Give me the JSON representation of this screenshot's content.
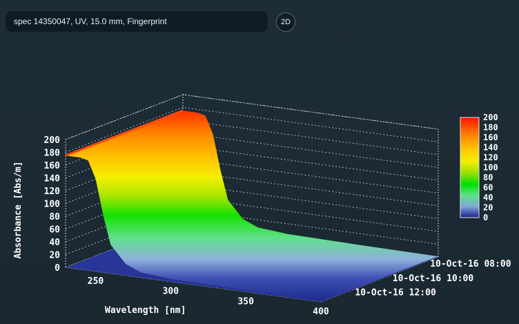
{
  "header": {
    "spectrum_label": "spec 14350047, UV, 15.0 mm, Fingerprint",
    "view_toggle_label": "2D"
  },
  "colors": {
    "background": "#1b2a33",
    "surface_low": "#1c2a8e",
    "surface_high": "#ff3a00"
  },
  "chart_data": {
    "type": "surface3d",
    "title": "",
    "xlabel": "Wavelength [nm]",
    "ylabel": "Absorbance [Abs/m]",
    "zlabel": "",
    "x_ticks": [
      "250",
      "300",
      "350",
      "400"
    ],
    "xlim": [
      230,
      400
    ],
    "y_ticks": [
      "0",
      "20",
      "40",
      "60",
      "80",
      "100",
      "120",
      "140",
      "160",
      "180",
      "200"
    ],
    "ylim": [
      0,
      200
    ],
    "time_ticks": [
      "10-Oct-16 08:00",
      "10-Oct-16 10:00",
      "10-Oct-16 12:00"
    ],
    "colorbar_ticks": [
      "0",
      "20",
      "40",
      "60",
      "80",
      "100",
      "120",
      "140",
      "160",
      "180",
      "200"
    ],
    "colorbar_colors": [
      "#1c1f8a",
      "#7fa8d8",
      "#5fe08a",
      "#00e000",
      "#9ae000",
      "#f0f000",
      "#ffcc00",
      "#ff9a00",
      "#ff5a00",
      "#ff1000"
    ],
    "grid": true,
    "series": [
      {
        "x": [
          230,
          235,
          240,
          245,
          250,
          255,
          260,
          270,
          280,
          300,
          350,
          400
        ],
        "values": [
          175,
          175,
          175,
          172,
          145,
          90,
          45,
          18,
          8,
          4,
          2,
          1
        ]
      }
    ]
  }
}
